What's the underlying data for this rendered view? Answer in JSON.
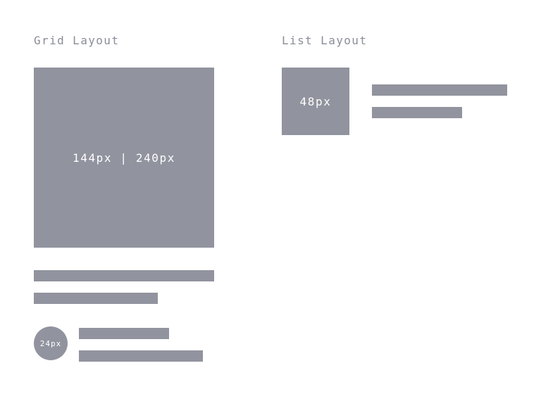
{
  "grid_section": {
    "heading": "Grid Layout",
    "thumbnail_label": "144px | 240px",
    "avatar_label": "24px"
  },
  "list_section": {
    "heading": "List Layout",
    "thumbnail_label": "48px"
  },
  "colors": {
    "placeholder_fill": "#91939e",
    "heading_text": "#8a8d99",
    "label_text": "#ffffff",
    "background": "#ffffff"
  }
}
